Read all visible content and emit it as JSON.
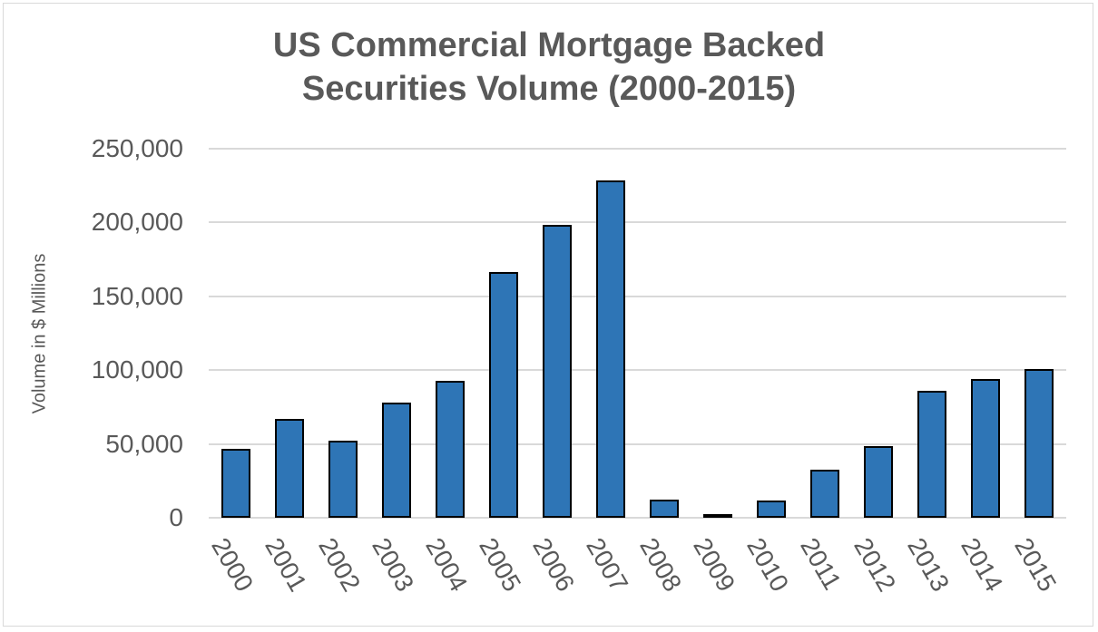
{
  "chart_data": {
    "type": "bar",
    "title": "US Commercial Mortgage Backed Securities Volume (2000-2015)",
    "title_lines": [
      "US Commercial Mortgage Backed",
      "Securities Volume (2000-2015)"
    ],
    "xlabel": "",
    "ylabel": "Volume in $ Millions",
    "ylim": [
      0,
      250000
    ],
    "yticks": [
      "0",
      "50,000",
      "100,000",
      "150,000",
      "200,000",
      "250,000"
    ],
    "grid": true,
    "legend": null,
    "bar_color": "#2e75b6",
    "categories": [
      "2000",
      "2001",
      "2002",
      "2003",
      "2004",
      "2005",
      "2006",
      "2007",
      "2008",
      "2009",
      "2010",
      "2011",
      "2012",
      "2013",
      "2014",
      "2015"
    ],
    "values": [
      46600,
      66900,
      52100,
      77900,
      92600,
      166300,
      198200,
      228200,
      12300,
      2500,
      11700,
      32500,
      48500,
      85900,
      93900,
      100600
    ]
  }
}
